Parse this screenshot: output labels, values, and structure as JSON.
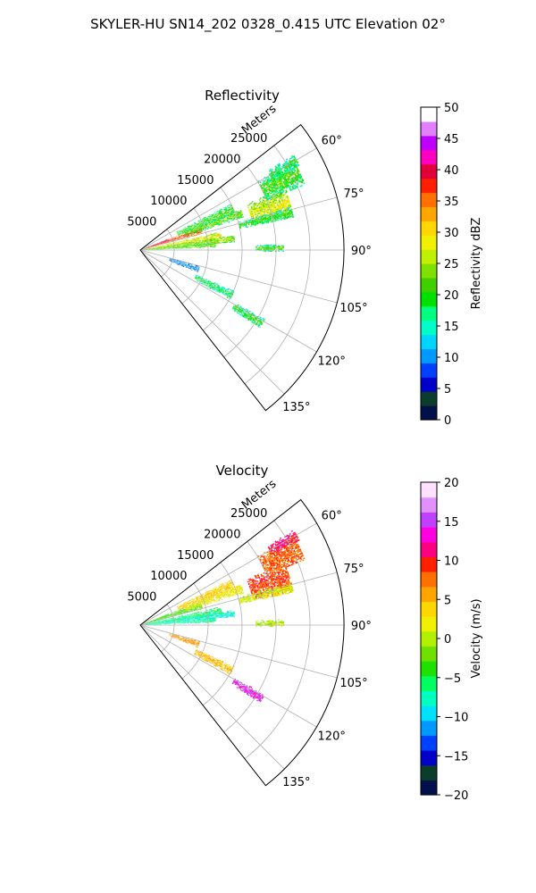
{
  "page": {
    "suptitle": "SKYLER-HU  SN14_202  0328_0.415 UTC Elevation 02°"
  },
  "chart_data": [
    {
      "type": "heatmap",
      "subtype": "polar-sector (radar PPI)",
      "title": "Reflectivity",
      "radial_label": "Meters",
      "radial_ticks": [
        "5000",
        "10000",
        "15000",
        "20000",
        "25000"
      ],
      "radial_range": [
        0,
        30000
      ],
      "angle_ticks": [
        "60°",
        "75°",
        "90°",
        "105°",
        "120°",
        "135°"
      ],
      "angle_range_deg": [
        52,
        142
      ],
      "grid": true,
      "colorbar": {
        "label": "Reflectivity dBZ",
        "range": [
          0,
          50
        ],
        "ticks": [
          "0",
          "5",
          "10",
          "15",
          "20",
          "25",
          "30",
          "35",
          "40",
          "45",
          "50"
        ],
        "colors": [
          "#00104a",
          "#0a3d2b",
          "#0000c8",
          "#0040ff",
          "#0099ff",
          "#00d5ff",
          "#00ffc8",
          "#00ff80",
          "#00e000",
          "#40d000",
          "#80e000",
          "#c0f000",
          "#f0f000",
          "#ffd700",
          "#ffa500",
          "#ff7000",
          "#ff2000",
          "#e0003a",
          "#ff00c0",
          "#c000ff",
          "#e080ff",
          "#ffffff"
        ]
      },
      "echoes": [
        {
          "az": 72,
          "r0": 500,
          "r1": 9500,
          "hw": 3.5,
          "v": 38
        },
        {
          "az": 70,
          "r0": 800,
          "r1": 4500,
          "hw": 2.2,
          "v": 44
        },
        {
          "az": 80,
          "r0": 500,
          "r1": 12000,
          "hw": 3.0,
          "v": 30
        },
        {
          "az": 83,
          "r0": 600,
          "r1": 14000,
          "hw": 2.2,
          "v": 26
        },
        {
          "az": 86,
          "r0": 800,
          "r1": 11000,
          "hw": 2.0,
          "v": 24
        },
        {
          "az": 66,
          "r0": 6000,
          "r1": 15000,
          "hw": 3.0,
          "v": 22
        },
        {
          "az": 70,
          "r0": 7000,
          "r1": 16000,
          "hw": 2.5,
          "v": 24
        },
        {
          "az": 72,
          "r0": 17000,
          "r1": 23000,
          "hw": 5.5,
          "v": 28
        },
        {
          "az": 64,
          "r0": 20000,
          "r1": 26000,
          "hw": 4.5,
          "v": 22
        },
        {
          "az": 60,
          "r0": 22000,
          "r1": 26500,
          "hw": 2.0,
          "v": 20
        },
        {
          "az": 76,
          "r0": 15000,
          "r1": 23000,
          "hw": 2.0,
          "v": 21
        },
        {
          "az": 89,
          "r0": 17000,
          "r1": 21000,
          "hw": 1.4,
          "v": 22
        },
        {
          "az": 108,
          "r0": 4500,
          "r1": 9000,
          "hw": 3.0,
          "v": 12
        },
        {
          "az": 116,
          "r0": 9000,
          "r1": 15000,
          "hw": 2.5,
          "v": 20
        },
        {
          "az": 121,
          "r0": 16000,
          "r1": 21000,
          "hw": 2.0,
          "v": 21
        }
      ]
    },
    {
      "type": "heatmap",
      "subtype": "polar-sector (radar PPI)",
      "title": "Velocity",
      "radial_label": "Meters",
      "radial_ticks": [
        "5000",
        "10000",
        "15000",
        "20000",
        "25000"
      ],
      "radial_range": [
        0,
        30000
      ],
      "angle_ticks": [
        "60°",
        "75°",
        "90°",
        "105°",
        "120°",
        "135°"
      ],
      "angle_range_deg": [
        52,
        142
      ],
      "grid": true,
      "colorbar": {
        "label": "Velocity (m/s)",
        "range": [
          -20,
          20
        ],
        "ticks": [
          "−20",
          "−15",
          "−10",
          "−5",
          "0",
          "5",
          "10",
          "15",
          "20"
        ],
        "colors": [
          "#00104a",
          "#0a3d2b",
          "#0000c8",
          "#0040ff",
          "#0099ff",
          "#00e0ff",
          "#00ffc0",
          "#00ff60",
          "#20e000",
          "#70e000",
          "#b0f000",
          "#f0f000",
          "#ffd700",
          "#ffa500",
          "#ff7000",
          "#ff2000",
          "#ff0080",
          "#ff00e0",
          "#c040ff",
          "#e090ff",
          "#ffe0ff"
        ]
      },
      "echoes": [
        {
          "az": 72,
          "r0": 500,
          "r1": 9500,
          "hw": 3.5,
          "v": -3
        },
        {
          "az": 70,
          "r0": 800,
          "r1": 4500,
          "hw": 2.2,
          "v": -4
        },
        {
          "az": 80,
          "r0": 500,
          "r1": 12000,
          "hw": 3.0,
          "v": -6
        },
        {
          "az": 83,
          "r0": 600,
          "r1": 14000,
          "hw": 2.2,
          "v": -8
        },
        {
          "az": 86,
          "r0": 800,
          "r1": 11000,
          "hw": 2.0,
          "v": -7
        },
        {
          "az": 66,
          "r0": 6000,
          "r1": 15000,
          "hw": 3.0,
          "v": 4
        },
        {
          "az": 70,
          "r0": 7000,
          "r1": 16000,
          "hw": 2.5,
          "v": 2
        },
        {
          "az": 72,
          "r0": 17000,
          "r1": 23000,
          "hw": 5.5,
          "v": 9
        },
        {
          "az": 64,
          "r0": 20000,
          "r1": 26000,
          "hw": 4.5,
          "v": 8
        },
        {
          "az": 60,
          "r0": 22000,
          "r1": 26500,
          "hw": 2.0,
          "v": 11
        },
        {
          "az": 76,
          "r0": 15000,
          "r1": 23000,
          "hw": 2.0,
          "v": 1
        },
        {
          "az": 89,
          "r0": 17000,
          "r1": 21000,
          "hw": 1.4,
          "v": 0
        },
        {
          "az": 108,
          "r0": 4500,
          "r1": 9000,
          "hw": 3.0,
          "v": 6
        },
        {
          "az": 116,
          "r0": 9000,
          "r1": 15000,
          "hw": 2.5,
          "v": 5
        },
        {
          "az": 121,
          "r0": 16000,
          "r1": 21000,
          "hw": 2.0,
          "v": 14
        }
      ]
    }
  ]
}
